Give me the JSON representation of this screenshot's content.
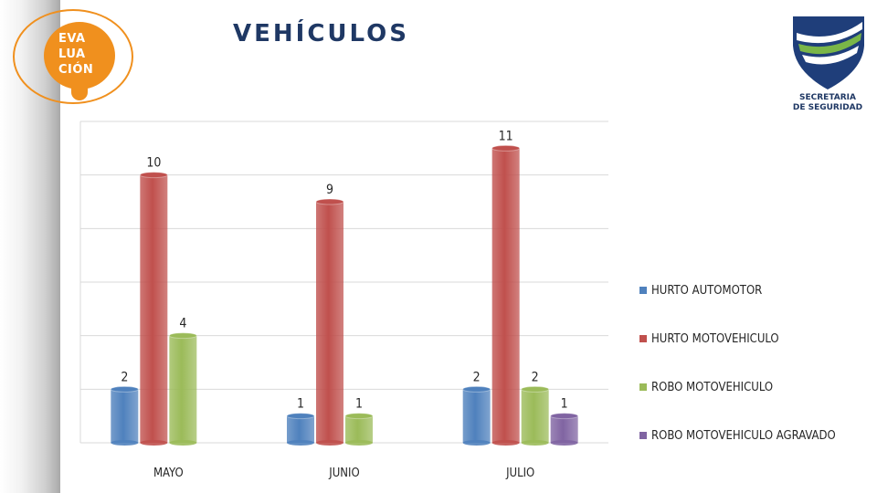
{
  "header": {
    "title": "VEHÍCULOS",
    "evaluacion_logo": [
      "EVA",
      "LUA",
      "CIÓN"
    ],
    "seal_text": [
      "SECRETARIA",
      "DE SEGURIDAD"
    ]
  },
  "colors": {
    "title": "#1f3864",
    "logo_orange": "#f0901e",
    "grid": "#d9d9d9"
  },
  "chart_data": {
    "type": "bar",
    "title": "",
    "xlabel": "",
    "ylabel": "",
    "categories": [
      "MAYO",
      "JUNIO",
      "JULIO"
    ],
    "ylim": [
      0,
      12
    ],
    "grid": true,
    "legend_position": "right",
    "series": [
      {
        "name": "HURTO AUTOMOTOR",
        "color": "#4f81bd",
        "values": [
          2,
          1,
          2
        ]
      },
      {
        "name": "HURTO MOTOVEHICULO",
        "color": "#c0504d",
        "values": [
          10,
          9,
          11
        ]
      },
      {
        "name": "ROBO MOTOVEHICULO",
        "color": "#9bbb59",
        "values": [
          4,
          1,
          2
        ]
      },
      {
        "name": "ROBO MOTOVEHICULO AGRAVADO",
        "color": "#8064a2",
        "values": [
          null,
          null,
          1
        ]
      }
    ]
  }
}
